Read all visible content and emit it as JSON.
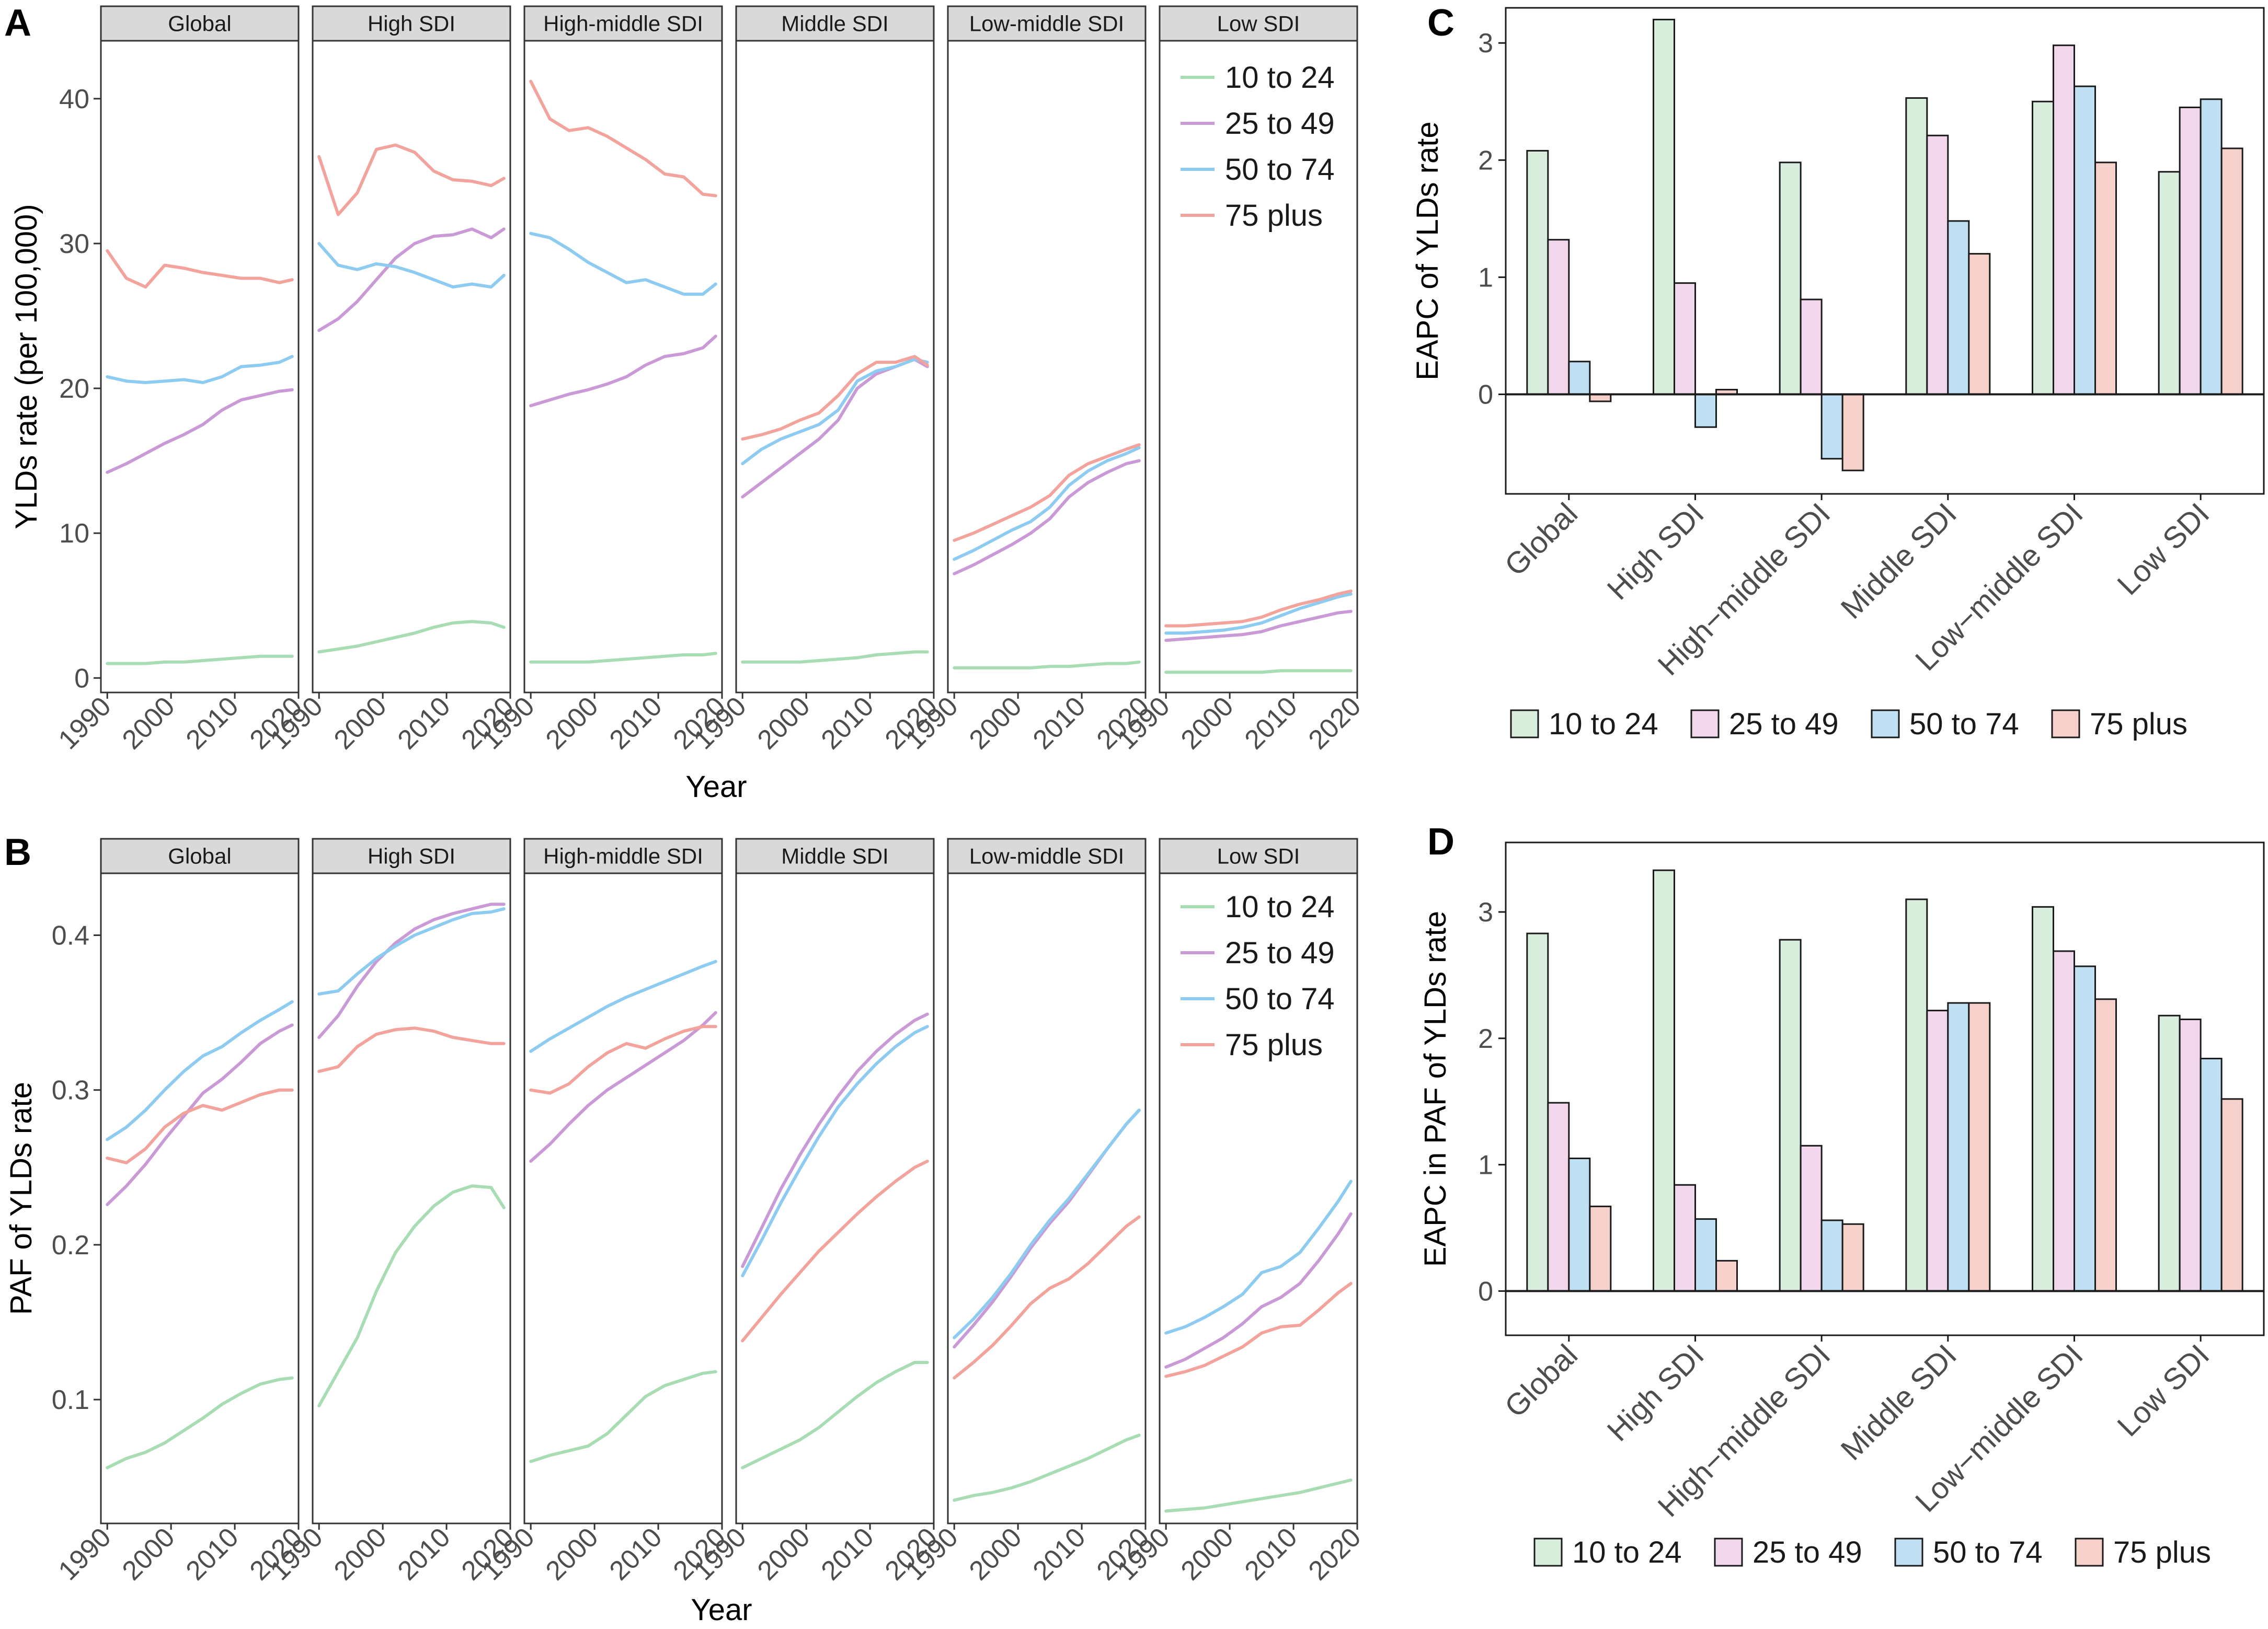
{
  "figure": {
    "panel_letters": [
      "A",
      "B",
      "C",
      "D"
    ]
  },
  "age_groups": [
    "10 to 24",
    "25 to 49",
    "50 to 74",
    "75 plus"
  ],
  "colors": {
    "10 to 24": "#a8dcb3",
    "25 to 49": "#c99ad6",
    "50 to 74": "#8ecbf0",
    "75 plus": "#f2a39c"
  },
  "bar_fills": {
    "10 to 24": "#d9eddc",
    "25 to 49": "#f1d6ec",
    "50 to 74": "#bfe0f3",
    "75 plus": "#f6d0cb"
  },
  "chart_data": [
    {
      "id": "A",
      "type": "line",
      "facets": [
        "Global",
        "High SDI",
        "High-middle SDI",
        "Middle SDI",
        "Low-middle SDI",
        "Low SDI"
      ],
      "xlabel": "Year",
      "ylabel": "YLDs rate (per 100,000)",
      "x_ticks": [
        1990,
        2000,
        2010,
        2020
      ],
      "xlim": [
        1989,
        2020
      ],
      "ylim": [
        -1,
        44
      ],
      "y_ticks": [
        0,
        10,
        20,
        30,
        40
      ],
      "x": [
        1990,
        1993,
        1996,
        1999,
        2002,
        2005,
        2008,
        2011,
        2014,
        2017,
        2019
      ],
      "series": {
        "Global": {
          "10 to 24": [
            1.0,
            1.0,
            1.0,
            1.1,
            1.1,
            1.2,
            1.3,
            1.4,
            1.5,
            1.5,
            1.5
          ],
          "25 to 49": [
            14.2,
            14.8,
            15.5,
            16.2,
            16.8,
            17.5,
            18.5,
            19.2,
            19.5,
            19.8,
            19.9
          ],
          "50 to 74": [
            20.8,
            20.5,
            20.4,
            20.5,
            20.6,
            20.4,
            20.8,
            21.5,
            21.6,
            21.8,
            22.2
          ],
          "75 plus": [
            29.5,
            27.6,
            27.0,
            28.5,
            28.3,
            28.0,
            27.8,
            27.6,
            27.6,
            27.3,
            27.5
          ]
        },
        "High SDI": {
          "10 to 24": [
            1.8,
            2.0,
            2.2,
            2.5,
            2.8,
            3.1,
            3.5,
            3.8,
            3.9,
            3.8,
            3.5
          ],
          "25 to 49": [
            24.0,
            24.8,
            26.0,
            27.5,
            29.0,
            30.0,
            30.5,
            30.6,
            31.0,
            30.4,
            31.0
          ],
          "50 to 74": [
            30.0,
            28.5,
            28.2,
            28.6,
            28.4,
            28.0,
            27.5,
            27.0,
            27.2,
            27.0,
            27.8
          ],
          "75 plus": [
            36.0,
            32.0,
            33.5,
            36.5,
            36.8,
            36.3,
            35.0,
            34.4,
            34.3,
            34.0,
            34.5
          ]
        },
        "High-middle SDI": {
          "10 to 24": [
            1.1,
            1.1,
            1.1,
            1.1,
            1.2,
            1.3,
            1.4,
            1.5,
            1.6,
            1.6,
            1.7
          ],
          "25 to 49": [
            18.8,
            19.2,
            19.6,
            19.9,
            20.3,
            20.8,
            21.6,
            22.2,
            22.4,
            22.8,
            23.6
          ],
          "50 to 74": [
            30.7,
            30.4,
            29.6,
            28.7,
            28.0,
            27.3,
            27.5,
            27.0,
            26.5,
            26.5,
            27.2
          ],
          "75 plus": [
            41.2,
            38.6,
            37.8,
            38.0,
            37.4,
            36.6,
            35.8,
            34.8,
            34.6,
            33.4,
            33.3
          ]
        },
        "Middle SDI": {
          "10 to 24": [
            1.1,
            1.1,
            1.1,
            1.1,
            1.2,
            1.3,
            1.4,
            1.6,
            1.7,
            1.8,
            1.8
          ],
          "25 to 49": [
            12.5,
            13.5,
            14.5,
            15.5,
            16.5,
            17.8,
            20.0,
            21.0,
            21.5,
            22.0,
            21.5
          ],
          "50 to 74": [
            14.8,
            15.8,
            16.5,
            17.0,
            17.5,
            18.5,
            20.5,
            21.2,
            21.5,
            22.0,
            21.8
          ],
          "75 plus": [
            16.5,
            16.8,
            17.2,
            17.8,
            18.3,
            19.5,
            21.0,
            21.8,
            21.8,
            22.2,
            21.6
          ]
        },
        "Low-middle SDI": {
          "10 to 24": [
            0.7,
            0.7,
            0.7,
            0.7,
            0.7,
            0.8,
            0.8,
            0.9,
            1.0,
            1.0,
            1.1
          ],
          "25 to 49": [
            7.2,
            7.8,
            8.5,
            9.2,
            10.0,
            11.0,
            12.5,
            13.5,
            14.2,
            14.8,
            15.0
          ],
          "50 to 74": [
            8.2,
            8.8,
            9.5,
            10.2,
            10.8,
            11.8,
            13.3,
            14.3,
            15.0,
            15.5,
            15.9
          ],
          "75 plus": [
            9.5,
            10.0,
            10.6,
            11.2,
            11.8,
            12.6,
            14.0,
            14.8,
            15.3,
            15.8,
            16.1
          ]
        },
        "Low SDI": {
          "10 to 24": [
            0.4,
            0.4,
            0.4,
            0.4,
            0.4,
            0.4,
            0.5,
            0.5,
            0.5,
            0.5,
            0.5
          ],
          "25 to 49": [
            2.6,
            2.7,
            2.8,
            2.9,
            3.0,
            3.2,
            3.6,
            3.9,
            4.2,
            4.5,
            4.6
          ],
          "50 to 74": [
            3.1,
            3.1,
            3.2,
            3.3,
            3.5,
            3.8,
            4.3,
            4.8,
            5.2,
            5.6,
            5.8
          ],
          "75 plus": [
            3.6,
            3.6,
            3.7,
            3.8,
            3.9,
            4.2,
            4.7,
            5.1,
            5.4,
            5.8,
            6.0
          ]
        }
      }
    },
    {
      "id": "B",
      "type": "line",
      "facets": [
        "Global",
        "High SDI",
        "High-middle SDI",
        "Middle SDI",
        "Low-middle SDI",
        "Low SDI"
      ],
      "xlabel": "Year",
      "ylabel": "PAF of YLDs rate",
      "x_ticks": [
        1990,
        2000,
        2010,
        2020
      ],
      "xlim": [
        1989,
        2020
      ],
      "ylim": [
        0.02,
        0.44
      ],
      "y_ticks": [
        0.1,
        0.2,
        0.3,
        0.4
      ],
      "x": [
        1990,
        1993,
        1996,
        1999,
        2002,
        2005,
        2008,
        2011,
        2014,
        2017,
        2019
      ],
      "series": {
        "Global": {
          "10 to 24": [
            0.056,
            0.062,
            0.066,
            0.072,
            0.08,
            0.088,
            0.097,
            0.104,
            0.11,
            0.113,
            0.114
          ],
          "25 to 49": [
            0.226,
            0.238,
            0.252,
            0.268,
            0.283,
            0.298,
            0.307,
            0.318,
            0.33,
            0.338,
            0.342
          ],
          "50 to 74": [
            0.268,
            0.276,
            0.287,
            0.3,
            0.312,
            0.322,
            0.328,
            0.337,
            0.345,
            0.352,
            0.357
          ],
          "75 plus": [
            0.256,
            0.253,
            0.262,
            0.276,
            0.285,
            0.29,
            0.287,
            0.292,
            0.297,
            0.3,
            0.3
          ]
        },
        "High SDI": {
          "10 to 24": [
            0.096,
            0.118,
            0.14,
            0.17,
            0.195,
            0.212,
            0.225,
            0.234,
            0.238,
            0.237,
            0.224
          ],
          "25 to 49": [
            0.334,
            0.348,
            0.367,
            0.383,
            0.395,
            0.404,
            0.41,
            0.414,
            0.417,
            0.42,
            0.42
          ],
          "50 to 74": [
            0.362,
            0.364,
            0.375,
            0.385,
            0.393,
            0.4,
            0.405,
            0.41,
            0.414,
            0.415,
            0.417
          ],
          "75 plus": [
            0.312,
            0.315,
            0.328,
            0.336,
            0.339,
            0.34,
            0.338,
            0.334,
            0.332,
            0.33,
            0.33
          ]
        },
        "High-middle SDI": {
          "10 to 24": [
            0.06,
            0.064,
            0.067,
            0.07,
            0.078,
            0.09,
            0.102,
            0.109,
            0.113,
            0.117,
            0.118
          ],
          "25 to 49": [
            0.254,
            0.265,
            0.278,
            0.29,
            0.3,
            0.308,
            0.316,
            0.324,
            0.332,
            0.342,
            0.35
          ],
          "50 to 74": [
            0.325,
            0.333,
            0.34,
            0.347,
            0.354,
            0.36,
            0.365,
            0.37,
            0.375,
            0.38,
            0.383
          ],
          "75 plus": [
            0.3,
            0.298,
            0.304,
            0.315,
            0.324,
            0.33,
            0.327,
            0.333,
            0.338,
            0.341,
            0.341
          ]
        },
        "Middle SDI": {
          "10 to 24": [
            0.056,
            0.062,
            0.068,
            0.074,
            0.082,
            0.092,
            0.102,
            0.111,
            0.118,
            0.124,
            0.124
          ],
          "25 to 49": [
            0.186,
            0.211,
            0.236,
            0.258,
            0.278,
            0.296,
            0.312,
            0.325,
            0.336,
            0.345,
            0.349
          ],
          "50 to 74": [
            0.18,
            0.203,
            0.227,
            0.249,
            0.27,
            0.289,
            0.304,
            0.317,
            0.328,
            0.337,
            0.341
          ],
          "75 plus": [
            0.138,
            0.153,
            0.168,
            0.182,
            0.196,
            0.208,
            0.22,
            0.231,
            0.241,
            0.25,
            0.254
          ]
        },
        "Low-middle SDI": {
          "10 to 24": [
            0.035,
            0.038,
            0.04,
            0.043,
            0.047,
            0.052,
            0.057,
            0.062,
            0.068,
            0.074,
            0.077
          ],
          "25 to 49": [
            0.134,
            0.148,
            0.163,
            0.18,
            0.198,
            0.214,
            0.228,
            0.245,
            0.262,
            0.278,
            0.287
          ],
          "50 to 74": [
            0.14,
            0.152,
            0.166,
            0.182,
            0.2,
            0.216,
            0.23,
            0.246,
            0.262,
            0.278,
            0.287
          ],
          "75 plus": [
            0.114,
            0.124,
            0.135,
            0.148,
            0.162,
            0.172,
            0.178,
            0.188,
            0.2,
            0.212,
            0.218
          ]
        },
        "Low SDI": {
          "10 to 24": [
            0.028,
            0.029,
            0.03,
            0.032,
            0.034,
            0.036,
            0.038,
            0.04,
            0.043,
            0.046,
            0.048
          ],
          "25 to 49": [
            0.121,
            0.126,
            0.133,
            0.14,
            0.149,
            0.16,
            0.166,
            0.175,
            0.19,
            0.207,
            0.22
          ],
          "50 to 74": [
            0.143,
            0.147,
            0.153,
            0.16,
            0.168,
            0.182,
            0.186,
            0.195,
            0.211,
            0.228,
            0.241
          ],
          "75 plus": [
            0.115,
            0.118,
            0.122,
            0.128,
            0.134,
            0.143,
            0.147,
            0.148,
            0.158,
            0.169,
            0.175
          ]
        }
      }
    },
    {
      "id": "C",
      "type": "bar",
      "categories": [
        "Global",
        "High SDI",
        "High−middle SDI",
        "Middle SDI",
        "Low−middle SDI",
        "Low SDI"
      ],
      "ylabel": "EAPC of YLDs rate",
      "ylim": [
        -0.85,
        3.3
      ],
      "y_ticks": [
        0,
        1,
        2,
        3
      ],
      "series": [
        {
          "name": "10 to 24",
          "values": [
            2.08,
            3.2,
            1.98,
            2.53,
            2.5,
            1.9
          ]
        },
        {
          "name": "25 to 49",
          "values": [
            1.32,
            0.95,
            0.81,
            2.21,
            2.98,
            2.45
          ]
        },
        {
          "name": "50 to 74",
          "values": [
            0.28,
            -0.28,
            -0.55,
            1.48,
            2.63,
            2.52
          ]
        },
        {
          "name": "75 plus",
          "values": [
            -0.06,
            0.04,
            -0.65,
            1.2,
            1.98,
            2.1
          ]
        }
      ]
    },
    {
      "id": "D",
      "type": "bar",
      "categories": [
        "Global",
        "High SDI",
        "High−middle SDI",
        "Middle SDI",
        "Low−middle SDI",
        "Low SDI"
      ],
      "ylabel": "EAPC in PAF of  YLDs rate",
      "ylim": [
        -0.35,
        3.55
      ],
      "y_ticks": [
        0,
        1,
        2,
        3
      ],
      "series": [
        {
          "name": "10 to 24",
          "values": [
            2.83,
            3.33,
            2.78,
            3.1,
            3.04,
            2.18
          ]
        },
        {
          "name": "25 to 49",
          "values": [
            1.49,
            0.84,
            1.15,
            2.22,
            2.69,
            2.15
          ]
        },
        {
          "name": "50 to 74",
          "values": [
            1.05,
            0.57,
            0.56,
            2.28,
            2.57,
            1.84
          ]
        },
        {
          "name": "75 plus",
          "values": [
            0.67,
            0.24,
            0.53,
            2.28,
            2.31,
            1.52
          ]
        }
      ]
    }
  ]
}
